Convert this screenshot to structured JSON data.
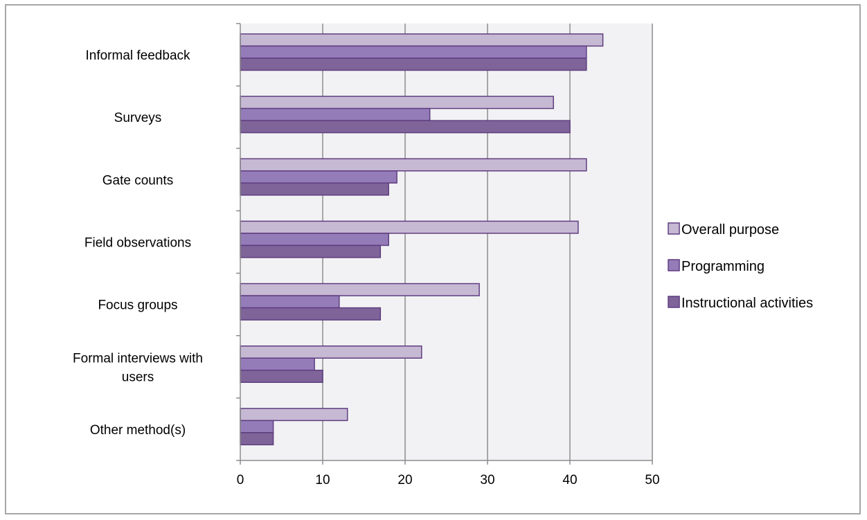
{
  "chart_data": {
    "type": "bar",
    "orientation": "horizontal",
    "title": "",
    "xlabel": "",
    "ylabel": "",
    "xlim": [
      0,
      50
    ],
    "xticks": [
      0,
      10,
      20,
      30,
      40,
      50
    ],
    "grid": "vertical-major",
    "legend_position": "right",
    "categories": [
      [
        "Informal feedback"
      ],
      [
        "Surveys"
      ],
      [
        "Gate counts"
      ],
      [
        "Field observations"
      ],
      [
        "Focus groups"
      ],
      [
        "Formal interviews with",
        "users"
      ],
      [
        "Other method(s)"
      ]
    ],
    "series": [
      {
        "name": "Overall purpose",
        "color": "#c6b9d3",
        "values": [
          44,
          38,
          42,
          41,
          29,
          22,
          13
        ]
      },
      {
        "name": "Programming",
        "color": "#947cb9",
        "values": [
          42,
          23,
          19,
          18,
          12,
          9,
          4
        ]
      },
      {
        "name": "Instructional activities",
        "color": "#7e6498",
        "values": [
          42,
          40,
          18,
          17,
          17,
          10,
          4
        ]
      }
    ],
    "colors": {
      "plot_background": "#f2f2f4",
      "bar_border": "#5f3d80",
      "grid": "#8c8c8c",
      "axis": "#8c8c8c"
    }
  }
}
